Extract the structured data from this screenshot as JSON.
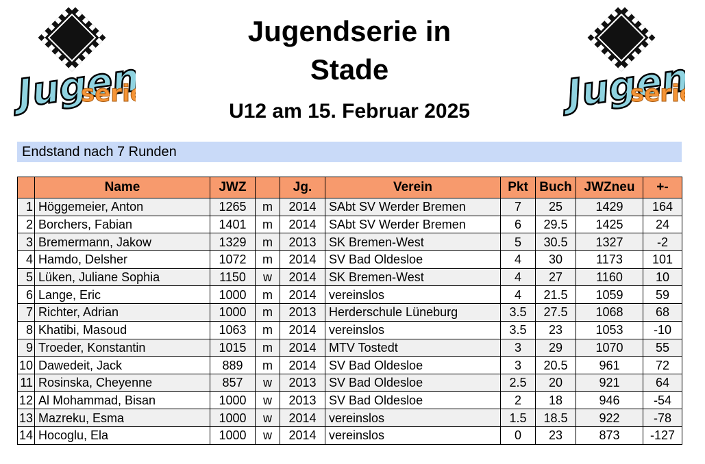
{
  "header": {
    "title_line1": "Jugendserie in",
    "title_line2": "Stade",
    "subtitle": "U12 am 15. Februar 2025",
    "logo_text_main": "Jugend",
    "logo_text_sub": "serie",
    "logo_icon": "chessboard-diamond-icon"
  },
  "standings_label": "Endstand nach 7 Runden",
  "colors": {
    "header_bg": "#f79a6d",
    "banner_bg": "#c9daf8",
    "row_alt_bg": "#f0f0f0"
  },
  "table": {
    "columns": [
      "",
      "Name",
      "JWZ",
      "",
      "Jg.",
      "Verein",
      "Pkt",
      "Buch",
      "JWZneu",
      "+-"
    ],
    "rows": [
      {
        "rank": "1",
        "name": "Höggemeier, Anton",
        "jwz": "1265",
        "sex": "m",
        "year": "2014",
        "club": "SAbt SV Werder Bremen",
        "pts": "7",
        "buch": "25",
        "jwzneu": "1429",
        "diff": "164"
      },
      {
        "rank": "2",
        "name": "Borchers, Fabian",
        "jwz": "1401",
        "sex": "m",
        "year": "2014",
        "club": "SAbt SV Werder Bremen",
        "pts": "6",
        "buch": "29.5",
        "jwzneu": "1425",
        "diff": "24"
      },
      {
        "rank": "3",
        "name": "Bremermann, Jakow",
        "jwz": "1329",
        "sex": "m",
        "year": "2013",
        "club": "SK Bremen-West",
        "pts": "5",
        "buch": "30.5",
        "jwzneu": "1327",
        "diff": "-2"
      },
      {
        "rank": "4",
        "name": "Hamdo, Delsher",
        "jwz": "1072",
        "sex": "m",
        "year": "2014",
        "club": "SV Bad Oldesloe",
        "pts": "4",
        "buch": "30",
        "jwzneu": "1173",
        "diff": "101"
      },
      {
        "rank": "5",
        "name": "Lüken, Juliane Sophia",
        "jwz": "1150",
        "sex": "w",
        "year": "2014",
        "club": "SK Bremen-West",
        "pts": "4",
        "buch": "27",
        "jwzneu": "1160",
        "diff": "10"
      },
      {
        "rank": "6",
        "name": "Lange, Eric",
        "jwz": "1000",
        "sex": "m",
        "year": "2014",
        "club": "vereinslos",
        "pts": "4",
        "buch": "21.5",
        "jwzneu": "1059",
        "diff": "59"
      },
      {
        "rank": "7",
        "name": "Richter, Adrian",
        "jwz": "1000",
        "sex": "m",
        "year": "2013",
        "club": "Herderschule Lüneburg",
        "pts": "3.5",
        "buch": "27.5",
        "jwzneu": "1068",
        "diff": "68"
      },
      {
        "rank": "8",
        "name": "Khatibi, Masoud",
        "jwz": "1063",
        "sex": "m",
        "year": "2014",
        "club": "vereinslos",
        "pts": "3.5",
        "buch": "23",
        "jwzneu": "1053",
        "diff": "-10"
      },
      {
        "rank": "9",
        "name": "Troeder, Konstantin",
        "jwz": "1015",
        "sex": "m",
        "year": "2014",
        "club": "MTV Tostedt",
        "pts": "3",
        "buch": "29",
        "jwzneu": "1070",
        "diff": "55"
      },
      {
        "rank": "10",
        "name": "Dawedeit, Jack",
        "jwz": "889",
        "sex": "m",
        "year": "2014",
        "club": "SV Bad Oldesloe",
        "pts": "3",
        "buch": "20.5",
        "jwzneu": "961",
        "diff": "72"
      },
      {
        "rank": "11",
        "name": "Rosinska, Cheyenne",
        "jwz": "857",
        "sex": "w",
        "year": "2013",
        "club": "SV Bad Oldesloe",
        "pts": "2.5",
        "buch": "20",
        "jwzneu": "921",
        "diff": "64"
      },
      {
        "rank": "12",
        "name": "Al Mohammad, Bisan",
        "jwz": "1000",
        "sex": "w",
        "year": "2013",
        "club": "SV Bad Oldesloe",
        "pts": "2",
        "buch": "18",
        "jwzneu": "946",
        "diff": "-54"
      },
      {
        "rank": "13",
        "name": "Mazreku, Esma",
        "jwz": "1000",
        "sex": "w",
        "year": "2014",
        "club": "vereinslos",
        "pts": "1.5",
        "buch": "18.5",
        "jwzneu": "922",
        "diff": "-78"
      },
      {
        "rank": "14",
        "name": "Hocoglu, Ela",
        "jwz": "1000",
        "sex": "w",
        "year": "2014",
        "club": "vereinslos",
        "pts": "0",
        "buch": "23",
        "jwzneu": "873",
        "diff": "-127"
      }
    ]
  }
}
